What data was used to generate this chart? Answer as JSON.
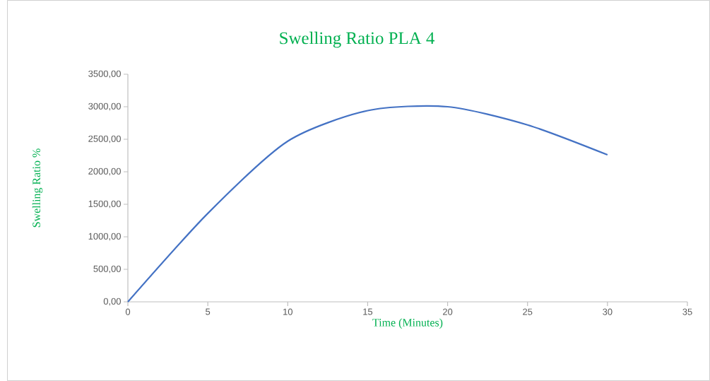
{
  "chart_data": {
    "type": "line",
    "title": "Swelling Ratio PLA 4",
    "xlabel": "Time (Minutes)",
    "ylabel": "Swelling Ratio %",
    "x": [
      0,
      5,
      10,
      15,
      20,
      25,
      30
    ],
    "series": [
      {
        "color": "#4472c4",
        "values": [
          0,
          1360,
          2470,
          2940,
          3000,
          2720,
          2260
        ]
      }
    ],
    "xlim": [
      0,
      35
    ],
    "xticks": [
      0,
      5,
      10,
      15,
      20,
      25,
      30,
      35
    ],
    "ylim": [
      0,
      3500
    ],
    "yticks": [
      {
        "value": 0,
        "label": "0,00"
      },
      {
        "value": 500,
        "label": "500,00"
      },
      {
        "value": 1000,
        "label": "1000,00"
      },
      {
        "value": 1500,
        "label": "1500,00"
      },
      {
        "value": 2000,
        "label": "2000,00"
      },
      {
        "value": 2500,
        "label": "2500,00"
      },
      {
        "value": 3000,
        "label": "3000,00"
      },
      {
        "value": 3500,
        "label": "3500,00"
      }
    ],
    "grid": false,
    "marker": "none",
    "line_style": "solid"
  }
}
